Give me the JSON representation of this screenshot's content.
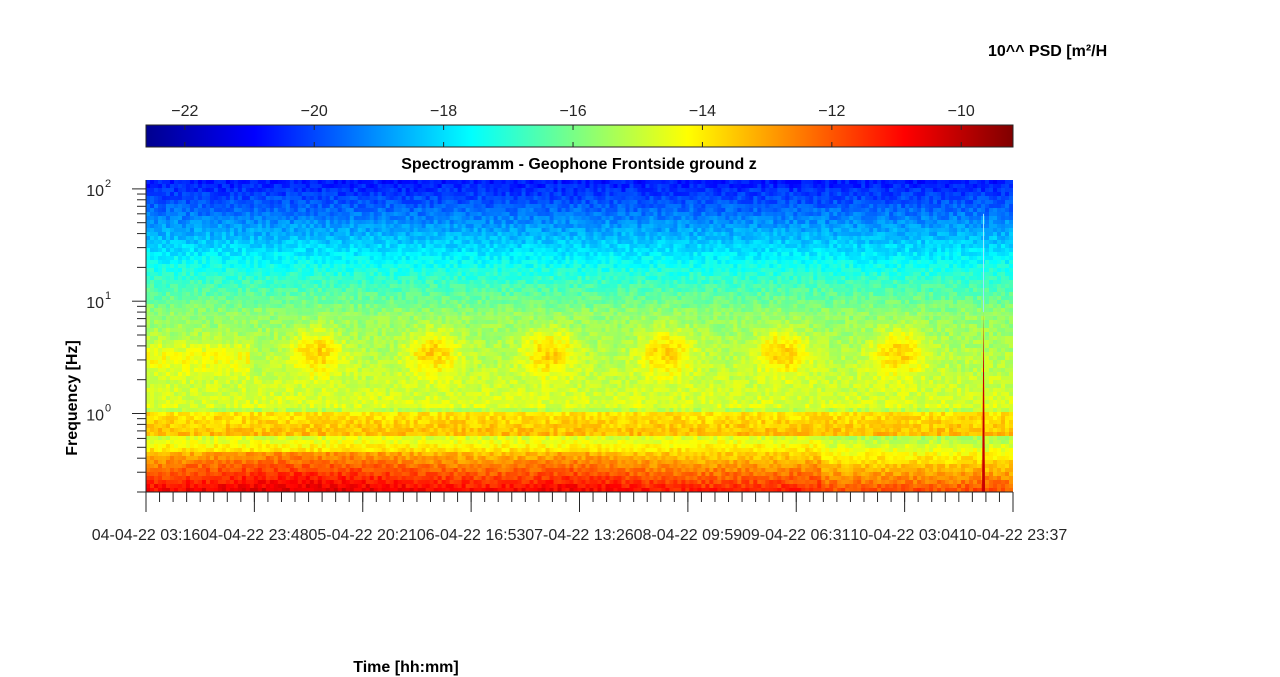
{
  "chart_data": {
    "type": "heatmap",
    "title": "Spectrogramm - Geophone Frontside ground z",
    "xlabel": "Time [hh:mm]",
    "ylabel": "Frequency [Hz]",
    "colorbar_label": "10^^ PSD [m²/H",
    "colormap": "jet",
    "color_range": [
      -22.6,
      -9.2
    ],
    "colorbar_ticks": [
      -22,
      -20,
      -18,
      -16,
      -14,
      -12,
      -10
    ],
    "y_scale": "log",
    "ylim": [
      0.2,
      120
    ],
    "y_ticks": [
      {
        "value": 1,
        "base": "10",
        "exp": "0"
      },
      {
        "value": 10,
        "base": "10",
        "exp": "1"
      },
      {
        "value": 100,
        "base": "10",
        "exp": "2"
      }
    ],
    "x_ticks": [
      "04-04-22 03:16",
      "04-04-22 23:48",
      "05-04-22 20:21",
      "06-04-22 16:53",
      "07-04-22 13:26",
      "08-04-22 09:59",
      "09-04-22 06:31",
      "10-04-22 03:04",
      "10-04-22 23:37"
    ],
    "annotations": [
      "Daily high-PSD bursts at about 2–6 Hz, six occurrences",
      "Short broadband event near 10-04-22 20:00 up to about 20 Hz"
    ],
    "grid": false
  },
  "colors": {
    "axes": "#262626",
    "background": "#ffffff"
  }
}
